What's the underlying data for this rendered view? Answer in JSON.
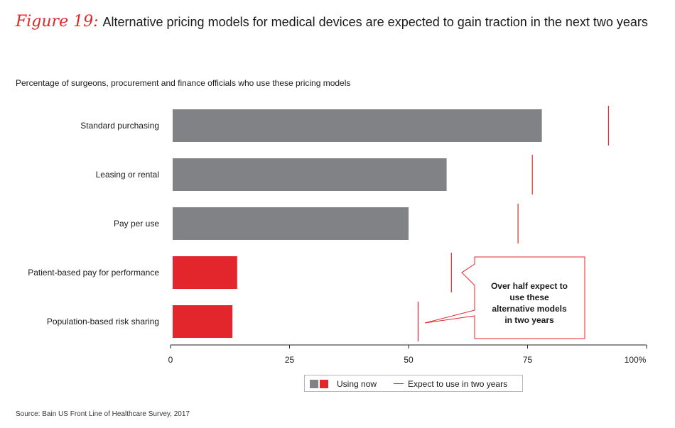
{
  "header": {
    "figure_label": "Figure 19:",
    "title": "Alternative pricing models for medical devices are expected to gain traction in the next two years"
  },
  "subtitle": "Percentage of surgeons, procurement and finance officials who use these pricing models",
  "source": "Source: Bain US Front Line of Healthcare Survey, 2017",
  "colors": {
    "gray": "#818285",
    "red": "#e3262b"
  },
  "chart_data": {
    "type": "bar",
    "orientation": "horizontal",
    "categories": [
      "Standard purchasing",
      "Leasing or rental",
      "Pay per use",
      "Patient-based pay for performance",
      "Population-based risk sharing"
    ],
    "series": [
      {
        "name": "Using now",
        "values": [
          78,
          58,
          50,
          14,
          13
        ]
      },
      {
        "name": "Expect to use in two years",
        "values": [
          92,
          76,
          73,
          59,
          52
        ]
      }
    ],
    "bar_colors": [
      "#818285",
      "#818285",
      "#818285",
      "#e3262b",
      "#e3262b"
    ],
    "xlim": [
      0,
      100
    ],
    "x_ticks": [
      "0",
      "25",
      "50",
      "75",
      "100%"
    ],
    "legend": {
      "placement": "bottom-right",
      "items": [
        "Using now",
        "Expect to use in two years"
      ]
    },
    "annotation": "Over half expect to use these alternative models in two years"
  }
}
